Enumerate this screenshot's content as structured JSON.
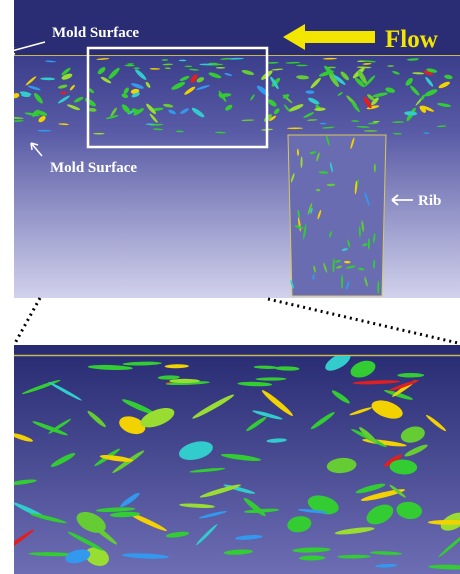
{
  "labels": {
    "mold_surface_top": "Mold Surface",
    "flow": "Flow",
    "mold_surface_bottom": "Mold Surface",
    "rib": "Rib"
  }
}
